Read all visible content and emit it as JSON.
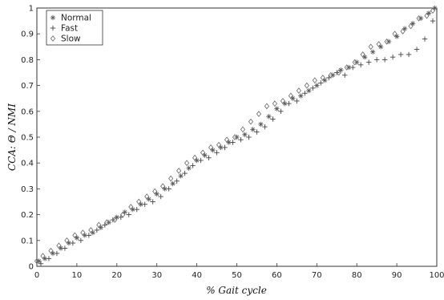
{
  "chart_data": {
    "type": "scatter",
    "title": "",
    "xlabel": "% Gait cycle",
    "ylabel": "CCA: Θ / NMI",
    "xlim": [
      0,
      100
    ],
    "ylim": [
      0,
      1
    ],
    "xticks": [
      0,
      10,
      20,
      30,
      40,
      50,
      60,
      70,
      80,
      90,
      100
    ],
    "yticks": [
      0,
      0.1,
      0.2,
      0.3,
      0.4,
      0.5,
      0.6,
      0.7,
      0.8,
      0.9,
      1
    ],
    "ytick_labels": [
      "0",
      "0.1",
      "0.2",
      "0.3",
      "0.4",
      "0.5",
      "0.6",
      "0.7",
      "0.8",
      "0.9",
      "1"
    ],
    "grid": false,
    "legend_position": "top-left",
    "series": [
      {
        "name": "Normal",
        "marker": "asterisk",
        "color": "#555555",
        "x": [
          0.5,
          2,
          4,
          6,
          8,
          10,
          12,
          14,
          16,
          18,
          20,
          22,
          24,
          26,
          28,
          30,
          32,
          34,
          36,
          38,
          40,
          42,
          44,
          46,
          48,
          50,
          52,
          54,
          56,
          58,
          60,
          62,
          64,
          66,
          68,
          70,
          72,
          74,
          76,
          78,
          80,
          82,
          84,
          86,
          88,
          90,
          92,
          94,
          96,
          98,
          99.5
        ],
        "y": [
          0.02,
          0.03,
          0.05,
          0.07,
          0.09,
          0.11,
          0.12,
          0.13,
          0.15,
          0.17,
          0.19,
          0.21,
          0.22,
          0.24,
          0.26,
          0.28,
          0.3,
          0.32,
          0.35,
          0.38,
          0.41,
          0.43,
          0.45,
          0.46,
          0.48,
          0.5,
          0.51,
          0.53,
          0.55,
          0.58,
          0.61,
          0.63,
          0.65,
          0.66,
          0.68,
          0.7,
          0.72,
          0.74,
          0.76,
          0.77,
          0.79,
          0.81,
          0.83,
          0.85,
          0.87,
          0.89,
          0.92,
          0.94,
          0.96,
          0.98,
          1.0
        ]
      },
      {
        "name": "Fast",
        "marker": "plus",
        "color": "#444444",
        "x": [
          1,
          3,
          5,
          7,
          9,
          11,
          13,
          15,
          17,
          19,
          21,
          23,
          25,
          27,
          29,
          31,
          33,
          35,
          37,
          39,
          41,
          43,
          45,
          47,
          49,
          51,
          53,
          55,
          57,
          59,
          61,
          63,
          65,
          67,
          69,
          71,
          73,
          75,
          77,
          79,
          81,
          83,
          85,
          87,
          89,
          91,
          93,
          95,
          97,
          99
        ],
        "y": [
          0.01,
          0.03,
          0.05,
          0.07,
          0.09,
          0.1,
          0.12,
          0.14,
          0.16,
          0.18,
          0.19,
          0.2,
          0.22,
          0.24,
          0.25,
          0.27,
          0.3,
          0.33,
          0.36,
          0.39,
          0.41,
          0.42,
          0.44,
          0.46,
          0.48,
          0.49,
          0.5,
          0.52,
          0.54,
          0.57,
          0.6,
          0.63,
          0.64,
          0.67,
          0.69,
          0.71,
          0.73,
          0.75,
          0.74,
          0.77,
          0.78,
          0.79,
          0.8,
          0.8,
          0.81,
          0.82,
          0.82,
          0.84,
          0.88,
          0.95
        ]
      },
      {
        "name": "Slow",
        "marker": "diamond",
        "color": "#666666",
        "x": [
          0,
          1.5,
          3.5,
          5.5,
          7.5,
          9.5,
          11.5,
          13.5,
          15.5,
          17.5,
          19.5,
          21.5,
          23.5,
          25.5,
          27.5,
          29.5,
          31.5,
          33.5,
          35.5,
          37.5,
          39.5,
          41.5,
          43.5,
          45.5,
          47.5,
          49.5,
          51.5,
          53.5,
          55.5,
          57.5,
          59.5,
          61.5,
          63.5,
          65.5,
          67.5,
          69.5,
          71.5,
          73.5,
          75.5,
          77.5,
          79.5,
          81.5,
          83.5,
          85.5,
          87.5,
          89.5,
          91.5,
          93.5,
          95.5,
          97.5,
          99
        ],
        "y": [
          0.02,
          0.04,
          0.06,
          0.08,
          0.1,
          0.12,
          0.13,
          0.14,
          0.16,
          0.17,
          0.18,
          0.2,
          0.23,
          0.25,
          0.27,
          0.29,
          0.31,
          0.34,
          0.37,
          0.4,
          0.42,
          0.44,
          0.46,
          0.47,
          0.49,
          0.5,
          0.53,
          0.56,
          0.59,
          0.62,
          0.63,
          0.64,
          0.66,
          0.68,
          0.7,
          0.72,
          0.73,
          0.74,
          0.75,
          0.77,
          0.79,
          0.82,
          0.85,
          0.86,
          0.87,
          0.9,
          0.91,
          0.93,
          0.96,
          0.97,
          0.99
        ]
      }
    ]
  }
}
